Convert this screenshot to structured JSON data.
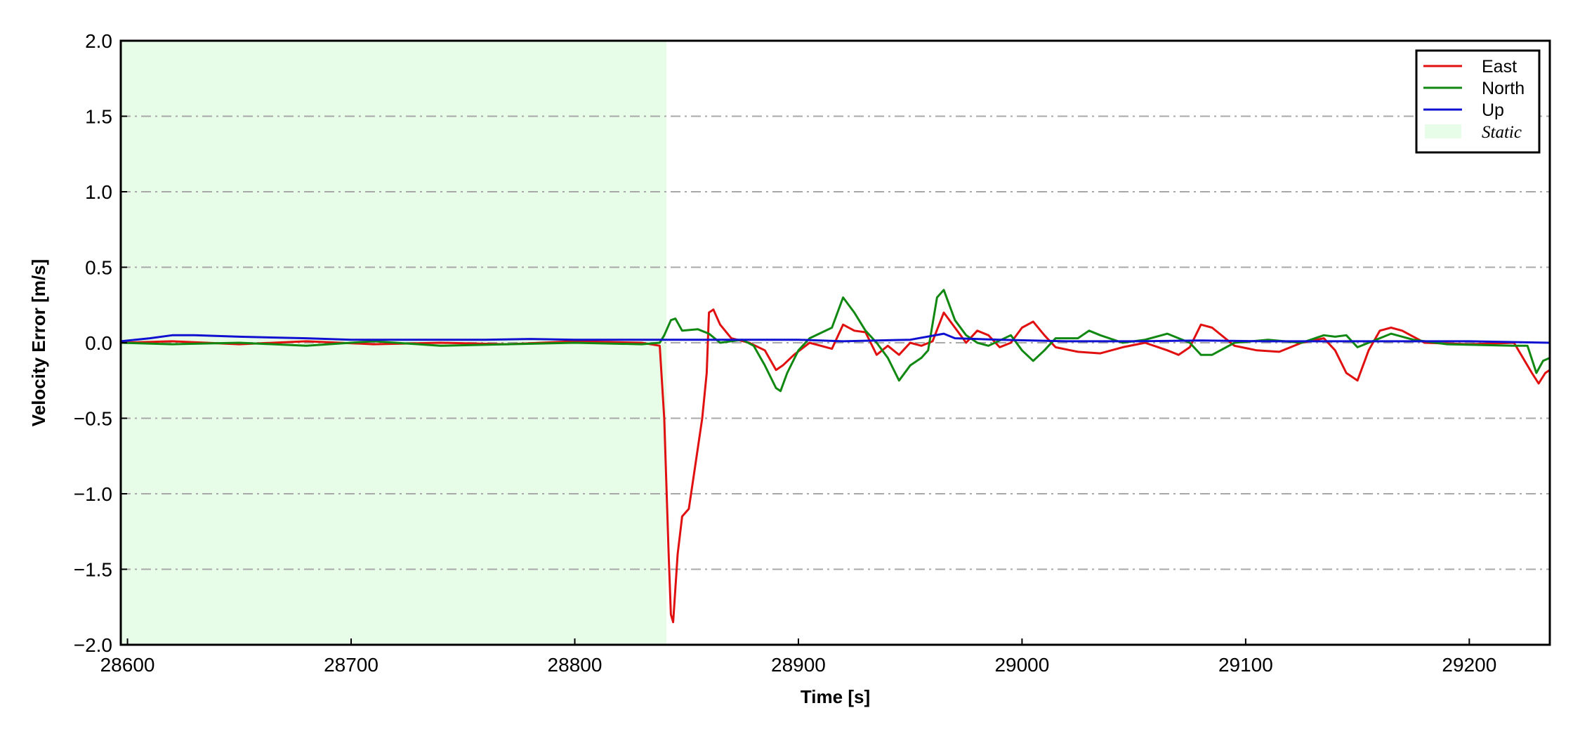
{
  "chart_data": {
    "type": "line",
    "xlabel": "Time [s]",
    "ylabel": "Velocity Error [m/s]",
    "xlim": [
      28597,
      29236
    ],
    "ylim": [
      -2.0,
      2.0
    ],
    "xticks": [
      28600,
      28700,
      28800,
      28900,
      29000,
      29100,
      29200
    ],
    "xtick_labels": [
      "28600",
      "28700",
      "28800",
      "28900",
      "29000",
      "29100",
      "29200"
    ],
    "yticks": [
      2.0,
      1.5,
      1.0,
      0.5,
      0.0,
      -0.5,
      -1.0,
      -1.5,
      -2.0
    ],
    "ytick_labels": [
      "2.0",
      "1.5",
      "1.0",
      "0.5",
      "0.0",
      "−0.5",
      "−1.0",
      "−1.5",
      "−2.0"
    ],
    "grid": "horizontal dash-dot",
    "legend_position": "top-right",
    "shaded_region": {
      "name": "Static",
      "x_start": 28597,
      "x_end": 28841,
      "color": "#e8fde8"
    },
    "series": [
      {
        "name": "East",
        "color": "#e01010",
        "points": [
          [
            28597,
            0.0
          ],
          [
            28620,
            0.01
          ],
          [
            28650,
            -0.01
          ],
          [
            28680,
            0.01
          ],
          [
            28710,
            -0.01
          ],
          [
            28740,
            0.0
          ],
          [
            28770,
            -0.01
          ],
          [
            28800,
            0.01
          ],
          [
            28830,
            0.0
          ],
          [
            28838,
            -0.02
          ],
          [
            28840,
            -0.5
          ],
          [
            28842,
            -1.4
          ],
          [
            28843,
            -1.8
          ],
          [
            28844,
            -1.85
          ],
          [
            28846,
            -1.4
          ],
          [
            28848,
            -1.15
          ],
          [
            28851,
            -1.1
          ],
          [
            28854,
            -0.8
          ],
          [
            28857,
            -0.5
          ],
          [
            28859,
            -0.2
          ],
          [
            28860,
            0.2
          ],
          [
            28862,
            0.22
          ],
          [
            28865,
            0.12
          ],
          [
            28870,
            0.03
          ],
          [
            28878,
            0.0
          ],
          [
            28885,
            -0.05
          ],
          [
            28890,
            -0.18
          ],
          [
            28893,
            -0.15
          ],
          [
            28898,
            -0.08
          ],
          [
            28905,
            0.0
          ],
          [
            28915,
            -0.04
          ],
          [
            28920,
            0.12
          ],
          [
            28925,
            0.08
          ],
          [
            28930,
            0.07
          ],
          [
            28935,
            -0.08
          ],
          [
            28940,
            -0.02
          ],
          [
            28945,
            -0.08
          ],
          [
            28950,
            0.0
          ],
          [
            28955,
            -0.02
          ],
          [
            28960,
            0.01
          ],
          [
            28965,
            0.2
          ],
          [
            28970,
            0.1
          ],
          [
            28975,
            0.0
          ],
          [
            28980,
            0.08
          ],
          [
            28985,
            0.05
          ],
          [
            28990,
            -0.03
          ],
          [
            28995,
            0.0
          ],
          [
            29000,
            0.1
          ],
          [
            29005,
            0.14
          ],
          [
            29010,
            0.05
          ],
          [
            29015,
            -0.03
          ],
          [
            29025,
            -0.06
          ],
          [
            29035,
            -0.07
          ],
          [
            29045,
            -0.03
          ],
          [
            29055,
            0.0
          ],
          [
            29065,
            -0.05
          ],
          [
            29070,
            -0.08
          ],
          [
            29075,
            -0.03
          ],
          [
            29080,
            0.12
          ],
          [
            29085,
            0.1
          ],
          [
            29095,
            -0.02
          ],
          [
            29105,
            -0.05
          ],
          [
            29115,
            -0.06
          ],
          [
            29125,
            0.0
          ],
          [
            29135,
            0.03
          ],
          [
            29140,
            -0.05
          ],
          [
            29145,
            -0.2
          ],
          [
            29150,
            -0.25
          ],
          [
            29155,
            -0.05
          ],
          [
            29160,
            0.08
          ],
          [
            29165,
            0.1
          ],
          [
            29170,
            0.08
          ],
          [
            29180,
            0.0
          ],
          [
            29200,
            -0.01
          ],
          [
            29220,
            0.0
          ],
          [
            29228,
            -0.2
          ],
          [
            29231,
            -0.27
          ],
          [
            29234,
            -0.2
          ],
          [
            29236,
            -0.18
          ]
        ]
      },
      {
        "name": "North",
        "color": "#118811",
        "points": [
          [
            28597,
            0.0
          ],
          [
            28620,
            -0.01
          ],
          [
            28650,
            0.0
          ],
          [
            28680,
            -0.02
          ],
          [
            28710,
            0.01
          ],
          [
            28740,
            -0.02
          ],
          [
            28770,
            -0.01
          ],
          [
            28800,
            0.0
          ],
          [
            28830,
            -0.01
          ],
          [
            28838,
            0.0
          ],
          [
            28840,
            0.05
          ],
          [
            28843,
            0.15
          ],
          [
            28845,
            0.16
          ],
          [
            28848,
            0.08
          ],
          [
            28855,
            0.09
          ],
          [
            28860,
            0.06
          ],
          [
            28865,
            0.0
          ],
          [
            28875,
            0.02
          ],
          [
            28880,
            -0.02
          ],
          [
            28885,
            -0.15
          ],
          [
            28890,
            -0.3
          ],
          [
            28892,
            -0.32
          ],
          [
            28895,
            -0.2
          ],
          [
            28900,
            -0.05
          ],
          [
            28905,
            0.03
          ],
          [
            28915,
            0.1
          ],
          [
            28920,
            0.3
          ],
          [
            28925,
            0.2
          ],
          [
            28930,
            0.08
          ],
          [
            28935,
            0.0
          ],
          [
            28940,
            -0.1
          ],
          [
            28945,
            -0.25
          ],
          [
            28950,
            -0.15
          ],
          [
            28955,
            -0.1
          ],
          [
            28958,
            -0.05
          ],
          [
            28962,
            0.3
          ],
          [
            28965,
            0.35
          ],
          [
            28970,
            0.15
          ],
          [
            28975,
            0.05
          ],
          [
            28980,
            0.0
          ],
          [
            28985,
            -0.02
          ],
          [
            28995,
            0.05
          ],
          [
            29000,
            -0.05
          ],
          [
            29005,
            -0.12
          ],
          [
            29010,
            -0.05
          ],
          [
            29015,
            0.03
          ],
          [
            29025,
            0.03
          ],
          [
            29030,
            0.08
          ],
          [
            29035,
            0.05
          ],
          [
            29045,
            0.0
          ],
          [
            29055,
            0.02
          ],
          [
            29065,
            0.06
          ],
          [
            29075,
            0.0
          ],
          [
            29080,
            -0.08
          ],
          [
            29085,
            -0.08
          ],
          [
            29095,
            0.0
          ],
          [
            29110,
            0.02
          ],
          [
            29125,
            0.0
          ],
          [
            29135,
            0.05
          ],
          [
            29140,
            0.04
          ],
          [
            29145,
            0.05
          ],
          [
            29150,
            -0.03
          ],
          [
            29155,
            0.0
          ],
          [
            29165,
            0.06
          ],
          [
            29175,
            0.02
          ],
          [
            29190,
            -0.01
          ],
          [
            29220,
            -0.02
          ],
          [
            29226,
            -0.02
          ],
          [
            29230,
            -0.2
          ],
          [
            29233,
            -0.12
          ],
          [
            29236,
            -0.1
          ]
        ]
      },
      {
        "name": "Up",
        "color": "#1010d0",
        "points": [
          [
            28597,
            0.01
          ],
          [
            28610,
            0.03
          ],
          [
            28620,
            0.05
          ],
          [
            28630,
            0.05
          ],
          [
            28650,
            0.04
          ],
          [
            28680,
            0.03
          ],
          [
            28700,
            0.02
          ],
          [
            28720,
            0.02
          ],
          [
            28740,
            0.02
          ],
          [
            28760,
            0.02
          ],
          [
            28780,
            0.025
          ],
          [
            28800,
            0.02
          ],
          [
            28820,
            0.02
          ],
          [
            28840,
            0.02
          ],
          [
            28860,
            0.02
          ],
          [
            28880,
            0.02
          ],
          [
            28900,
            0.02
          ],
          [
            28920,
            0.01
          ],
          [
            28950,
            0.02
          ],
          [
            28965,
            0.06
          ],
          [
            28970,
            0.03
          ],
          [
            28990,
            0.02
          ],
          [
            29020,
            0.01
          ],
          [
            29050,
            0.01
          ],
          [
            29080,
            0.015
          ],
          [
            29110,
            0.01
          ],
          [
            29140,
            0.01
          ],
          [
            29170,
            0.01
          ],
          [
            29200,
            0.01
          ],
          [
            29236,
            0.0
          ]
        ]
      }
    ]
  }
}
